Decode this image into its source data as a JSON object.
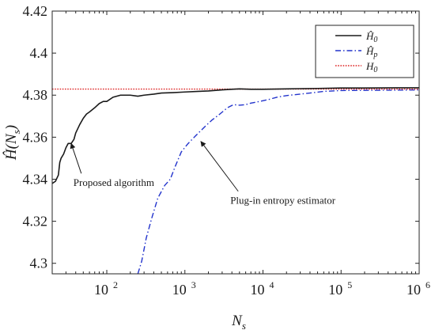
{
  "chart_data": {
    "type": "line",
    "xlabel": "N_s",
    "ylabel": "Ĥ(N_s)",
    "xscale": "log",
    "xlim": [
      20,
      1000000
    ],
    "ylim": [
      4.295,
      4.42
    ],
    "x_ticks": [
      {
        "value": 100,
        "base": "10",
        "exp": "2"
      },
      {
        "value": 1000,
        "base": "10",
        "exp": "3"
      },
      {
        "value": 10000,
        "base": "10",
        "exp": "4"
      },
      {
        "value": 100000,
        "base": "10",
        "exp": "5"
      },
      {
        "value": 1000000,
        "base": "10",
        "exp": "6"
      }
    ],
    "y_ticks": [
      4.3,
      4.32,
      4.34,
      4.36,
      4.38,
      4.4,
      4.42
    ],
    "y_tick_labels": [
      "4.3",
      "4.32",
      "4.34",
      "4.36",
      "4.38",
      "4.4",
      "4.42"
    ],
    "legend_position": "top-right",
    "series": [
      {
        "name": "Ĥ0",
        "legend": {
          "base": "Ĥ",
          "sub": "0"
        },
        "color": "#1a1a1a",
        "style": "solid",
        "x": [
          20,
          22,
          24,
          25,
          26,
          28,
          30,
          32,
          35,
          38,
          40,
          45,
          50,
          55,
          60,
          70,
          80,
          90,
          100,
          120,
          150,
          200,
          250,
          300,
          400,
          500,
          700,
          1000,
          1500,
          2000,
          3000,
          4000,
          5000,
          7000,
          10000,
          20000,
          50000,
          100000,
          200000,
          500000,
          1000000
        ],
        "y": [
          4.338,
          4.339,
          4.342,
          4.348,
          4.35,
          4.352,
          4.355,
          4.357,
          4.357,
          4.359,
          4.362,
          4.366,
          4.369,
          4.371,
          4.372,
          4.374,
          4.376,
          4.377,
          4.377,
          4.379,
          4.38,
          4.38,
          4.3795,
          4.38,
          4.3805,
          4.381,
          4.3812,
          4.3815,
          4.3818,
          4.382,
          4.3825,
          4.3828,
          4.383,
          4.3828,
          4.3828,
          4.383,
          4.3832,
          4.3834,
          4.3834,
          4.3835,
          4.3835
        ]
      },
      {
        "name": "Ĥp",
        "legend": {
          "base": "Ĥ",
          "sub": "p"
        },
        "color": "#2233cc",
        "style": "dashdot",
        "x": [
          250,
          280,
          320,
          380,
          450,
          550,
          650,
          750,
          900,
          1100,
          1400,
          1800,
          2200,
          2800,
          3500,
          4200,
          5000,
          6000,
          7000,
          9000,
          12000,
          15000,
          20000,
          30000,
          40000,
          60000,
          100000,
          200000,
          500000,
          1000000
        ],
        "y": [
          4.295,
          4.301,
          4.312,
          4.322,
          4.331,
          4.337,
          4.34,
          4.346,
          4.353,
          4.357,
          4.361,
          4.365,
          4.368,
          4.371,
          4.374,
          4.3755,
          4.3752,
          4.3755,
          4.3762,
          4.377,
          4.378,
          4.379,
          4.3798,
          4.3805,
          4.381,
          4.3818,
          4.3822,
          4.3823,
          4.3824,
          4.3825
        ]
      },
      {
        "name": "H0",
        "legend": {
          "base": "H",
          "sub": "0"
        },
        "color": "#dd2222",
        "style": "dotted",
        "x": [
          20,
          1000000
        ],
        "y": [
          4.3829,
          4.3829
        ]
      }
    ],
    "annotations": [
      {
        "text": "Proposed algorithm",
        "arrow_to": {
          "x": 35,
          "y": 4.357
        },
        "text_at": {
          "x": 45,
          "y": 4.342
        }
      },
      {
        "text": "Plug-in entropy estimator",
        "arrow_to": {
          "x": 1600,
          "y": 4.358
        },
        "text_at": {
          "x": 4600,
          "y": 4.3335
        }
      }
    ]
  }
}
